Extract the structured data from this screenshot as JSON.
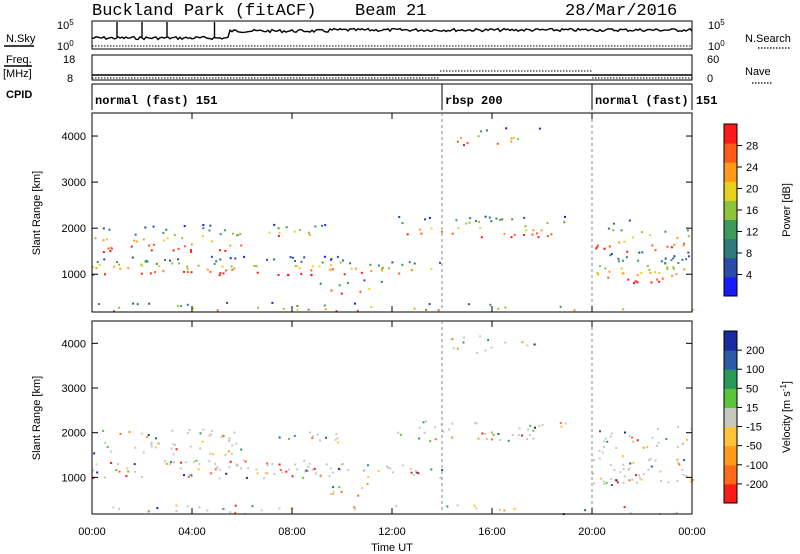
{
  "header": {
    "station": "Buckland Park (fitACF)",
    "beam": "Beam 21",
    "date": "28/Mar/2016"
  },
  "strip_labels": {
    "nsky": "N.Sky",
    "freq": "Freq.",
    "mhz": "[MHz]",
    "cpid": "CPID",
    "nsearch": "N.Search",
    "nave": "Nave"
  },
  "strip_ticks": {
    "noise_left_top": "10^5",
    "noise_left_bottom": "10^0",
    "noise_right_top": "10^5",
    "noise_right_bottom": "10^0",
    "freq_top": "18",
    "freq_bottom": "8",
    "nave_top": "60",
    "nave_bottom": "0"
  },
  "cpid_modes": [
    {
      "label": "normal (fast) 151",
      "start_hour": 0,
      "end_hour": 14
    },
    {
      "label": "rbsp 200",
      "start_hour": 14,
      "end_hour": 20
    },
    {
      "label": "normal (fast) 151",
      "start_hour": 20,
      "end_hour": 24
    }
  ],
  "colors": {
    "power": [
      "#1a1aff",
      "#2a4ba8",
      "#2f7a7a",
      "#3d9a5a",
      "#8fc43a",
      "#e6d21e",
      "#ff9a1a",
      "#ff5a1a",
      "#ff1a1a"
    ],
    "velocity": [
      "#ff1a1a",
      "#ff6a1a",
      "#ff9a1a",
      "#ffc23a",
      "#c8c8c0",
      "#5ac43a",
      "#2a9a5a",
      "#2a5aa8",
      "#1a2aa0"
    ]
  },
  "chart_data": [
    {
      "type": "heatmap",
      "title": "",
      "xlabel": "Time UT",
      "ylabel": "Slant Range [km]",
      "x_range_hours": [
        0,
        24
      ],
      "y_range_km": [
        180,
        4500
      ],
      "x_ticks": [
        "00:00",
        "04:00",
        "08:00",
        "12:00",
        "16:00",
        "20:00",
        "00:00"
      ],
      "y_ticks": [
        "1000",
        "2000",
        "3000",
        "4000"
      ],
      "colorbar": {
        "label": "Power [dB]",
        "range": [
          0,
          32
        ],
        "ticks": [
          "4",
          "8",
          "12",
          "16",
          "20",
          "24",
          "28"
        ]
      }
    },
    {
      "type": "heatmap",
      "title": "",
      "xlabel": "Time UT",
      "ylabel": "Slant Range [km]",
      "x_range_hours": [
        0,
        24
      ],
      "y_range_km": [
        180,
        4500
      ],
      "x_ticks": [
        "00:00",
        "04:00",
        "08:00",
        "12:00",
        "16:00",
        "20:00",
        "00:00"
      ],
      "y_ticks": [
        "1000",
        "2000",
        "3000",
        "4000"
      ],
      "colorbar": {
        "label": "Velocity [m s^-1]",
        "range": [
          -250,
          250
        ],
        "ticks": [
          "200",
          "100",
          "50",
          "15",
          "-15",
          "-50",
          "-100",
          "-200"
        ]
      }
    }
  ],
  "time_axis_label": "Time UT"
}
